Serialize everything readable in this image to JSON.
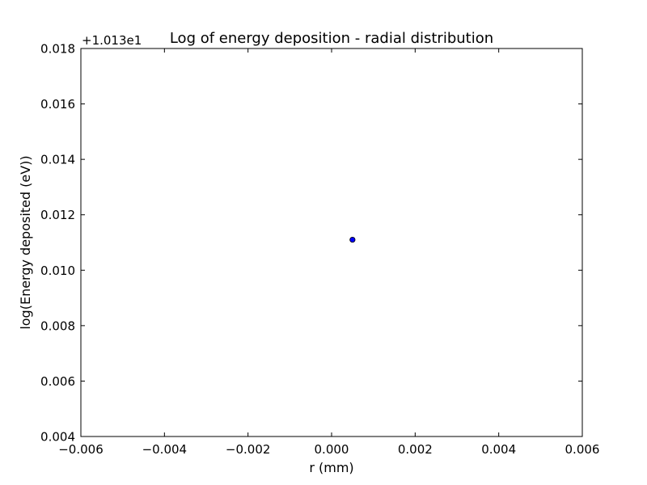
{
  "chart_data": {
    "type": "scatter",
    "title": "Log of energy deposition - radial distribution",
    "xlabel": "r (mm)",
    "ylabel": "log(Energy deposited (eV))",
    "y_offset_label": "+1.013e1",
    "xlim": [
      -0.006,
      0.006
    ],
    "ylim": [
      0.004,
      0.018
    ],
    "x_ticks": [
      -0.006,
      -0.004,
      -0.002,
      0.0,
      0.002,
      0.004,
      0.006
    ],
    "x_tick_labels": [
      "−0.006",
      "−0.004",
      "−0.002",
      "0.000",
      "0.002",
      "0.004",
      "0.006"
    ],
    "y_ticks": [
      0.004,
      0.006,
      0.008,
      0.01,
      0.012,
      0.014,
      0.016,
      0.018
    ],
    "y_tick_labels": [
      "0.004",
      "0.006",
      "0.008",
      "0.010",
      "0.012",
      "0.014",
      "0.016",
      "0.018"
    ],
    "grid": false,
    "series": [
      {
        "color": "#0000ff",
        "points": [
          {
            "x": 0.0005,
            "y": 0.0111
          }
        ]
      }
    ]
  }
}
